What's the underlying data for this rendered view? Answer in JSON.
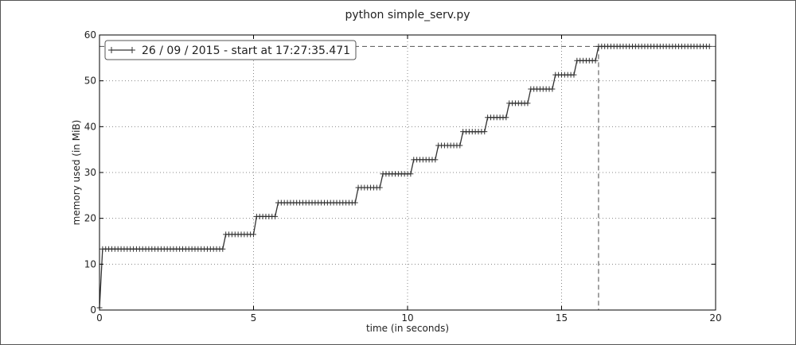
{
  "chart_data": {
    "type": "line",
    "title": "python simple_serv.py",
    "xlabel": "time (in seconds)",
    "ylabel": "memory used (in MiB)",
    "xlim": [
      0,
      20
    ],
    "ylim": [
      0,
      60
    ],
    "xticks": [
      0,
      5,
      10,
      15,
      20
    ],
    "yticks": [
      0,
      10,
      20,
      30,
      40,
      50,
      60
    ],
    "grid": true,
    "legend_position": "top-left",
    "series": [
      {
        "name": "26 / 09 / 2015 - start at 17:27:35.471",
        "color": "#333333",
        "marker": "+",
        "x": [
          0.0,
          0.1,
          4.0,
          4.1,
          5.0,
          5.1,
          5.7,
          5.8,
          8.3,
          8.4,
          9.1,
          9.2,
          10.1,
          10.2,
          10.9,
          11.0,
          11.7,
          11.8,
          12.5,
          12.6,
          13.2,
          13.3,
          13.9,
          14.0,
          14.7,
          14.8,
          15.4,
          15.5,
          16.1,
          16.2,
          19.8
        ],
        "y": [
          0.5,
          13.3,
          13.3,
          16.5,
          16.5,
          20.4,
          20.4,
          23.4,
          23.4,
          26.7,
          26.7,
          29.7,
          29.7,
          32.8,
          32.8,
          35.9,
          35.9,
          38.9,
          38.9,
          42.0,
          42.0,
          45.1,
          45.1,
          48.2,
          48.2,
          51.3,
          51.3,
          54.4,
          54.4,
          57.5,
          57.5
        ],
        "marker_spacing": 0.1
      }
    ],
    "peak": {
      "x": 16.2,
      "y": 57.5,
      "color": "#666666"
    }
  }
}
